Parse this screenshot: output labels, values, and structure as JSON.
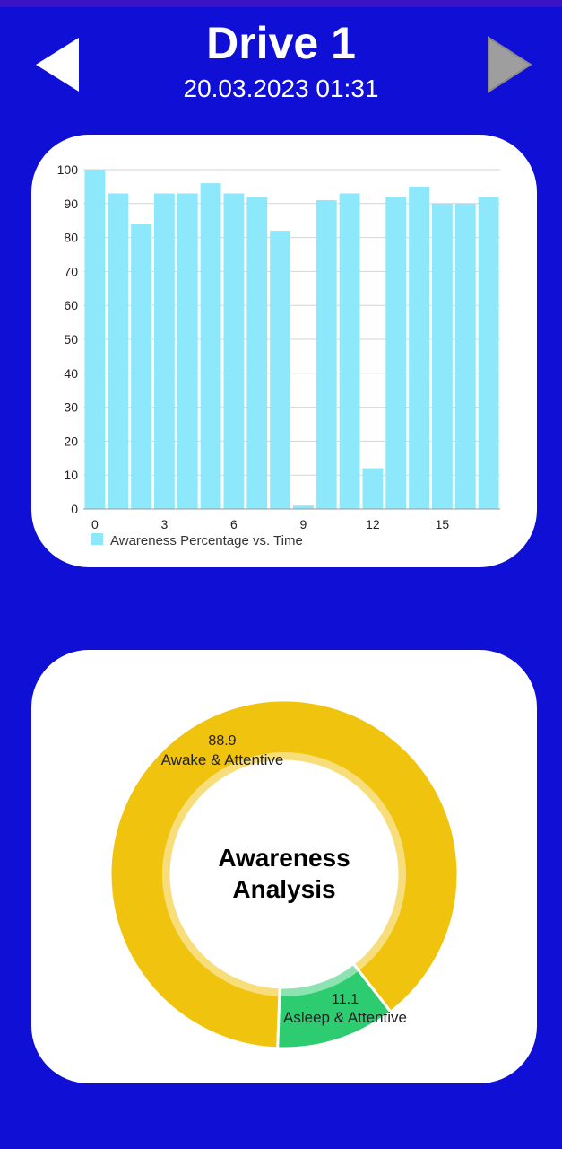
{
  "header": {
    "title": "Drive 1",
    "subtitle": "20.03.2023 01:31",
    "prev_icon": "triangle-left-icon",
    "next_icon": "triangle-right-icon"
  },
  "colors": {
    "background": "#0f0fd6",
    "bar": "#8ee8fb",
    "awake": "#f0c30f",
    "asleep": "#2ecc71"
  },
  "chart_data": [
    {
      "type": "bar",
      "x": [
        0,
        1,
        2,
        3,
        4,
        5,
        6,
        7,
        8,
        9,
        10,
        11,
        12,
        13,
        14,
        15,
        16,
        17
      ],
      "values": [
        100,
        93,
        84,
        93,
        93,
        96,
        93,
        92,
        82,
        1,
        91,
        93,
        12,
        92,
        95,
        90,
        90,
        92
      ],
      "x_ticks": [
        "0",
        "3",
        "6",
        "9",
        "12",
        "15"
      ],
      "y_ticks": [
        "0",
        "10",
        "20",
        "30",
        "40",
        "50",
        "60",
        "70",
        "80",
        "90",
        "100"
      ],
      "ylim": [
        0,
        100
      ],
      "grid": true,
      "legend": "Awareness Percentage vs. Time",
      "legend_position": "bottom-left"
    },
    {
      "type": "pie",
      "donut": true,
      "center_text": [
        "Awareness",
        "Analysis"
      ],
      "slices": [
        {
          "label": "Awake & Attentive",
          "value": 88.9,
          "value_label": "88.9"
        },
        {
          "label": "Asleep & Attentive",
          "value": 11.1,
          "value_label": "11.1"
        }
      ]
    }
  ]
}
